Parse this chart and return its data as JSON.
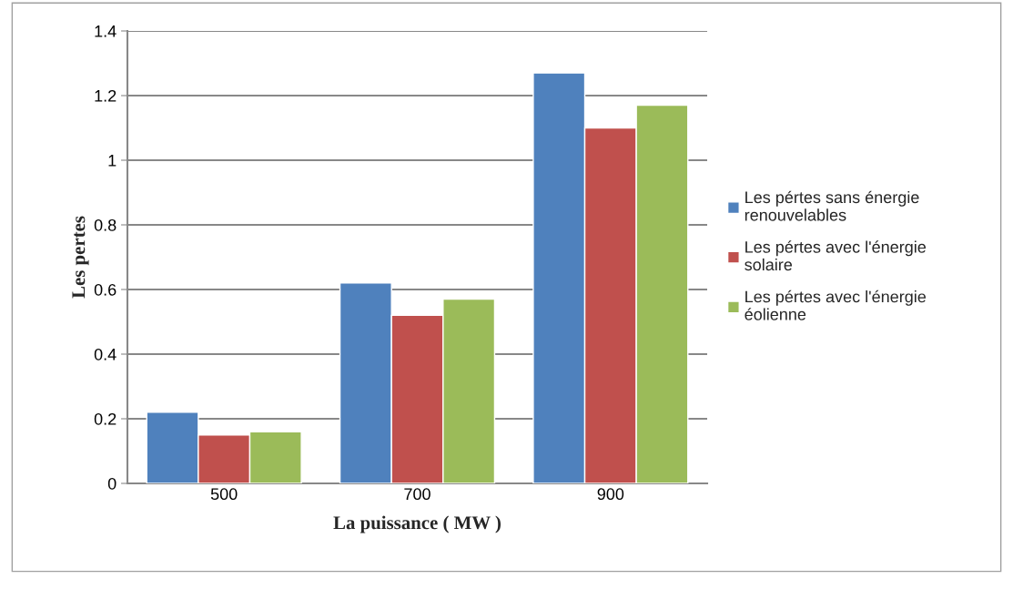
{
  "chart_data": {
    "type": "bar",
    "xlabel": "La puissance ( MW )",
    "ylabel": "Les pertes",
    "categories": [
      "500",
      "700",
      "900"
    ],
    "series": [
      {
        "name": "Les pértes sans énergie renouvelables",
        "color": "#4f81bd",
        "values": [
          0.22,
          0.62,
          1.27
        ]
      },
      {
        "name": "Les pértes avec l'énergie solaire",
        "color": "#c0504d",
        "values": [
          0.15,
          0.52,
          1.1
        ]
      },
      {
        "name": "Les pértes avec l'énergie éolienne",
        "color": "#9bbb59",
        "values": [
          0.16,
          0.57,
          1.17
        ]
      }
    ],
    "ylim": [
      0,
      1.4
    ],
    "yticks": [
      0,
      {
        "value": 0.2,
        "label": "0.2"
      },
      {
        "value": 0.4,
        "label": "0.4"
      },
      {
        "value": 0.6,
        "label": "0.6"
      },
      {
        "value": 0.8,
        "label": "0.8"
      },
      1,
      {
        "value": 1.2,
        "label": "1.2"
      },
      {
        "value": 1.4,
        "label": "1.4"
      }
    ],
    "grid": "y",
    "legend": "right"
  }
}
